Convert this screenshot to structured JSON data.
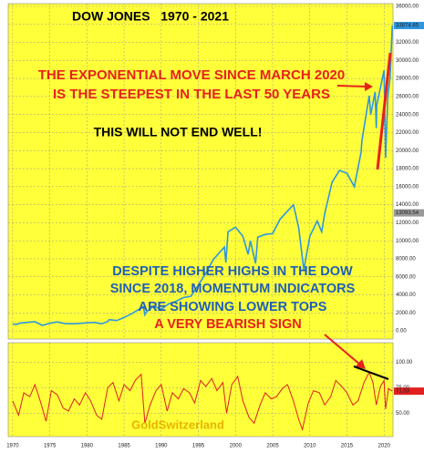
{
  "chart_data": [
    {
      "type": "line",
      "title": "DOW JONES   1970 - 2021",
      "x": [
        1970,
        1970.5,
        1971,
        1972,
        1973,
        1974,
        1975,
        1976,
        1977,
        1978,
        1979,
        1980,
        1981,
        1982,
        1982.8,
        1983,
        1984,
        1985,
        1986,
        1987.6,
        1987.8,
        1988,
        1989,
        1990,
        1991,
        1992,
        1993,
        1994,
        1995,
        1996,
        1997,
        1998.5,
        1998.7,
        1999,
        2000,
        2001,
        2001.7,
        2002,
        2002.7,
        2003,
        2004,
        2005,
        2006,
        2007.8,
        2008.5,
        2009.2,
        2010,
        2011,
        2011.6,
        2012,
        2013,
        2014,
        2015,
        2016,
        2016.9,
        2017,
        2018,
        2018.2,
        2018.8,
        2018.95,
        2019,
        2020,
        2020.2,
        2020.5,
        2020.8,
        2020.9,
        2021.1
      ],
      "series": [
        {
          "color": "#2f96e0",
          "values": [
            780,
            720,
            880,
            950,
            1020,
            620,
            850,
            1000,
            830,
            800,
            840,
            900,
            950,
            800,
            1050,
            1250,
            1150,
            1500,
            1900,
            2700,
            1800,
            2100,
            2750,
            2400,
            3000,
            3300,
            3700,
            3850,
            5100,
            6400,
            7900,
            9300,
            7600,
            11000,
            11500,
            10500,
            8500,
            10000,
            7500,
            10400,
            10700,
            10800,
            12400,
            14000,
            11500,
            6800,
            10500,
            12200,
            11000,
            13000,
            16500,
            17800,
            17500,
            16000,
            19800,
            21000,
            26100,
            24000,
            26500,
            22500,
            25000,
            28900,
            19200,
            26000,
            28000,
            30000,
            33874.85
          ]
        }
      ],
      "xlim": [
        1969.4,
        2021.2
      ],
      "ylim": [
        -900,
        36300
      ],
      "yticks": [
        {
          "value": 0,
          "label": "0.00"
        },
        {
          "value": 2000,
          "label": "2000.00"
        },
        {
          "value": 4000,
          "label": "4000.00"
        },
        {
          "value": 6000,
          "label": "6000.00"
        },
        {
          "value": 8000,
          "label": "8000.00"
        },
        {
          "value": 10000,
          "label": "10000.00"
        },
        {
          "value": 12000,
          "label": "12000.00"
        },
        {
          "value": 14000,
          "label": "14000.00"
        },
        {
          "value": 16000,
          "label": "16000.00"
        },
        {
          "value": 18000,
          "label": "18000.00"
        },
        {
          "value": 20000,
          "label": "20000.00"
        },
        {
          "value": 22000,
          "label": "22000.00"
        },
        {
          "value": 24000,
          "label": "24000.00"
        },
        {
          "value": 26000,
          "label": "26000.00"
        },
        {
          "value": 28000,
          "label": "28000.00"
        },
        {
          "value": 30000,
          "label": "30000.00"
        },
        {
          "value": 32000,
          "label": "32000.00"
        },
        {
          "value": 34000,
          "label": "34000.00"
        },
        {
          "value": 36000,
          "label": "36000.00"
        }
      ],
      "grid": true,
      "markers": [
        {
          "value": 33874.85,
          "color": "#2f96e0"
        },
        {
          "value": 13093.54,
          "color": "#999999"
        }
      ],
      "annotations": [
        {
          "text": "THE EXPONENTIAL MOVE SINCE MARCH 2020",
          "color": "#e8211b"
        },
        {
          "text": "IS THE STEEPEST IN THE LAST 50 YEARS",
          "color": "#e8211b"
        },
        {
          "text": "THIS WILL NOT END WELL!",
          "color": "#000000"
        },
        {
          "text": "DESPITE HIGHER HIGHS IN THE DOW",
          "color": "#1f5fb8"
        },
        {
          "text": "SINCE 2018, MOMENTUM INDICATORS",
          "color": "#1f5fb8"
        },
        {
          "text": "ARE SHOWING LOWER TOPS",
          "color": "#1f5fb8"
        },
        {
          "text": "A VERY BEARISH SIGN",
          "color": "#e8211b"
        },
        {
          "text": "GoldSwitzerland",
          "color": "#e8b400"
        }
      ]
    },
    {
      "type": "line",
      "x": [
        1970,
        1970.8,
        1971.5,
        1972.3,
        1973,
        1973.8,
        1974.5,
        1975.2,
        1976,
        1976.8,
        1977.5,
        1978.3,
        1979,
        1979.8,
        1980.5,
        1981.3,
        1982,
        1982.8,
        1983.5,
        1984.3,
        1985,
        1985.8,
        1986.5,
        1987.3,
        1987.8,
        1988.5,
        1989.3,
        1990,
        1990.8,
        1991.5,
        1992.3,
        1993,
        1993.8,
        1994.5,
        1995.3,
        1996,
        1996.8,
        1997.5,
        1998.3,
        1998.8,
        1999.5,
        2000.3,
        2001,
        2001.8,
        2002.5,
        2003.3,
        2004,
        2004.8,
        2005.5,
        2006.3,
        2007,
        2007.8,
        2008.5,
        2009,
        2009.8,
        2010.5,
        2011.3,
        2012,
        2012.8,
        2013.5,
        2014.3,
        2015,
        2015.8,
        2016.5,
        2017.3,
        2018,
        2018.5,
        2018.95,
        2019.5,
        2020,
        2020.2,
        2020.6,
        2021.1
      ],
      "series": [
        {
          "color": "#e02020",
          "values": [
            62,
            48,
            70,
            66,
            78,
            60,
            42,
            72,
            68,
            55,
            52,
            64,
            58,
            70,
            62,
            48,
            44,
            75,
            80,
            62,
            78,
            72,
            82,
            88,
            40,
            58,
            72,
            78,
            52,
            70,
            64,
            74,
            70,
            60,
            82,
            76,
            84,
            72,
            80,
            50,
            78,
            86,
            62,
            46,
            40,
            58,
            70,
            64,
            66,
            74,
            78,
            62,
            44,
            34,
            60,
            72,
            70,
            58,
            66,
            82,
            76,
            70,
            58,
            62,
            80,
            90,
            80,
            58,
            76,
            82,
            54,
            74,
            71.53
          ]
        }
      ],
      "xlim": [
        1969.4,
        2021.2
      ],
      "ylim": [
        27,
        119
      ],
      "yticks": [
        {
          "value": 50,
          "label": "50.00"
        },
        {
          "value": 75,
          "label": "75.00"
        },
        {
          "value": 100,
          "label": "100.00"
        }
      ],
      "xticks": [
        1970,
        1975,
        1980,
        1985,
        1990,
        1995,
        2000,
        2005,
        2010,
        2015,
        2020
      ],
      "grid": true,
      "markers": [
        {
          "value": 71.53,
          "color": "#e02020"
        }
      ]
    }
  ]
}
